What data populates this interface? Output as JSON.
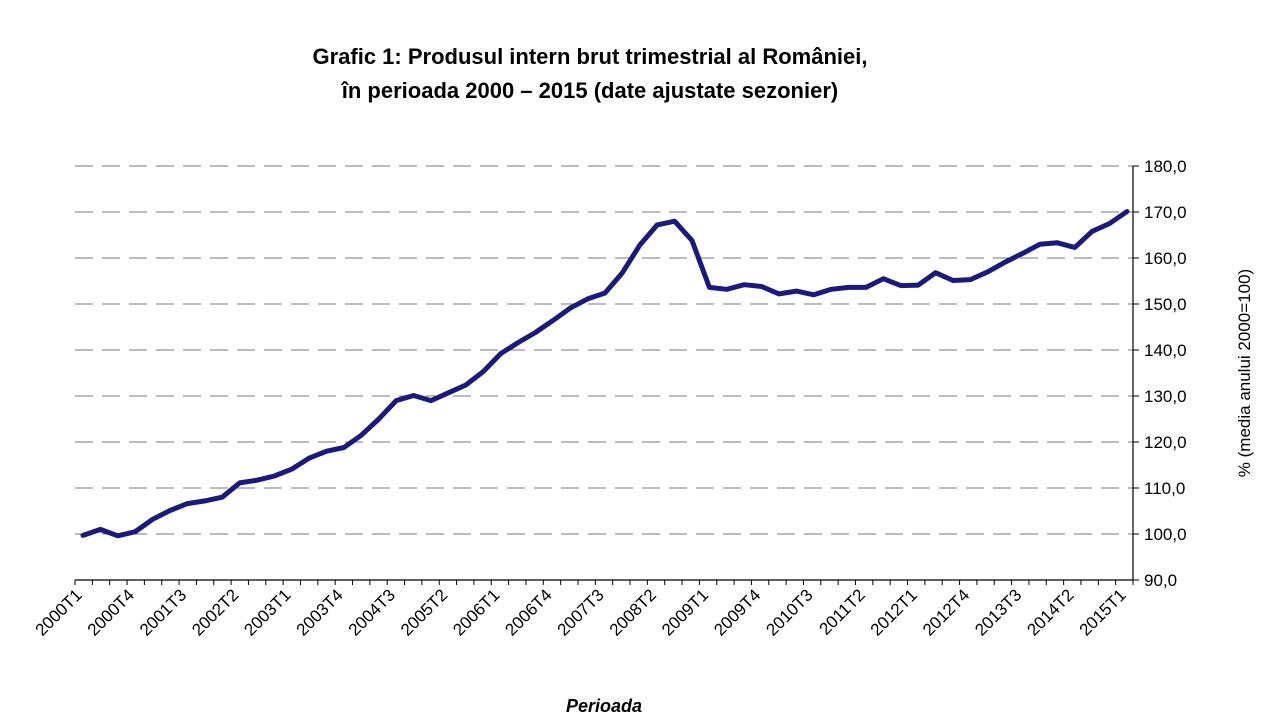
{
  "chart_data": {
    "type": "line",
    "title": "Grafic 1: Produsul intern brut trimestrial al României,",
    "subtitle": "în perioada 2000 – 2015 (date ajustate sezonier)",
    "xlabel": "Perioada",
    "ylabel": "% (media anului 2000=100)",
    "ylim": [
      90,
      180
    ],
    "ytick_step": 10,
    "y_axis_side": "right",
    "grid": true,
    "grid_style": "dashed",
    "line_color": "#1a1a7e",
    "x_tick_labels": [
      "2000T1",
      "2000T4",
      "2001T3",
      "2002T2",
      "2003T1",
      "2003T4",
      "2004T3",
      "2005T2",
      "2006T1",
      "2006T4",
      "2007T3",
      "2008T2",
      "2009T1",
      "2009T4",
      "2010T3",
      "2011T2",
      "2012T1",
      "2012T4",
      "2013T3",
      "2014T2",
      "2015T1"
    ],
    "x_tick_every": 3,
    "y_tick_labels": [
      "90,0",
      "100,0",
      "110,0",
      "120,0",
      "130,0",
      "140,0",
      "150,0",
      "160,0",
      "170,0",
      "180,0"
    ],
    "series": [
      {
        "x": [
          "2000T1",
          "2000T2",
          "2000T3",
          "2000T4",
          "2001T1",
          "2001T2",
          "2001T3",
          "2001T4",
          "2002T1",
          "2002T2",
          "2002T3",
          "2002T4",
          "2003T1",
          "2003T2",
          "2003T3",
          "2003T4",
          "2004T1",
          "2004T2",
          "2004T3",
          "2004T4",
          "2005T1",
          "2005T2",
          "2005T3",
          "2005T4",
          "2006T1",
          "2006T2",
          "2006T3",
          "2006T4",
          "2007T1",
          "2007T2",
          "2007T3",
          "2007T4",
          "2008T1",
          "2008T2",
          "2008T3",
          "2008T4",
          "2009T1",
          "2009T2",
          "2009T3",
          "2009T4",
          "2010T1",
          "2010T2",
          "2010T3",
          "2010T4",
          "2011T1",
          "2011T2",
          "2011T3",
          "2011T4",
          "2012T1",
          "2012T2",
          "2012T3",
          "2012T4",
          "2013T1",
          "2013T2",
          "2013T3",
          "2013T4",
          "2014T1",
          "2014T2",
          "2014T3",
          "2014T4",
          "2015T1"
        ],
        "values": [
          99.7,
          101.0,
          99.6,
          100.5,
          103.2,
          105.1,
          106.6,
          107.2,
          108.0,
          111.1,
          111.7,
          112.6,
          114.1,
          116.5,
          118.0,
          118.8,
          121.5,
          125.0,
          129.0,
          130.1,
          129.0,
          130.7,
          132.4,
          135.3,
          139.2,
          141.6,
          143.8,
          146.4,
          149.1,
          151.1,
          152.4,
          156.8,
          162.8,
          167.2,
          168.0,
          163.8,
          153.6,
          153.2,
          154.2,
          153.8,
          152.2,
          152.8,
          152.0,
          153.2,
          153.6,
          153.6,
          155.5,
          154.0,
          154.1,
          156.8,
          155.1,
          155.3,
          157.0,
          159.1,
          161.0,
          163.0,
          163.3,
          162.3,
          165.8,
          167.5,
          170.1
        ]
      }
    ]
  }
}
